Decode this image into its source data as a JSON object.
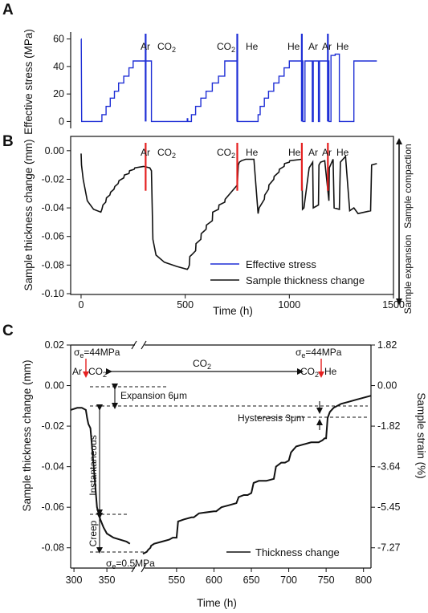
{
  "chart_data": [
    {
      "panel": "A",
      "type": "line",
      "ylabel": "Effective stress (MPa)",
      "xlim": [
        -50,
        1500
      ],
      "ylim": [
        -5,
        65
      ],
      "yticks": [
        0,
        20,
        40,
        60
      ],
      "series": [
        {
          "color": "#1f2fd6",
          "x": [
            0,
            1,
            1,
            3,
            3,
            100,
            100,
            120,
            120,
            140,
            140,
            160,
            160,
            180,
            180,
            205,
            205,
            230,
            230,
            250,
            250,
            330,
            330,
            338,
            338,
            510,
            510,
            512,
            512,
            515,
            515,
            530,
            530,
            550,
            550,
            575,
            575,
            600,
            600,
            630,
            630,
            660,
            660,
            690,
            690,
            750,
            750,
            760,
            760,
            850,
            850,
            860,
            860,
            880,
            880,
            900,
            900,
            925,
            925,
            950,
            950,
            975,
            975,
            1000,
            1000,
            1065,
            1065,
            1075,
            1075,
            1110,
            1110,
            1115,
            1115,
            1140,
            1140,
            1145,
            1145,
            1190,
            1190,
            1200,
            1200,
            1220,
            1220,
            1240,
            1240,
            1300,
            1300,
            1310,
            1310,
            1390,
            1390,
            1420
          ],
          "y": [
            60,
            60,
            60,
            0,
            0,
            0,
            5,
            5,
            11,
            11,
            17,
            17,
            22,
            22,
            28,
            28,
            33,
            33,
            39,
            39,
            44,
            44,
            44,
            44,
            0,
            0,
            2,
            2,
            0,
            0,
            0,
            0,
            5,
            5,
            11,
            11,
            17,
            17,
            22,
            22,
            28,
            28,
            33,
            33,
            44,
            44,
            0,
            0,
            0,
            0,
            5,
            5,
            11,
            11,
            17,
            17,
            22,
            22,
            28,
            28,
            33,
            33,
            39,
            39,
            44,
            44,
            0,
            0,
            44,
            44,
            0,
            0,
            44,
            44,
            0,
            0,
            44,
            44,
            0,
            0,
            48,
            48,
            49,
            49,
            0,
            0,
            0,
            0,
            44,
            44,
            44,
            44
          ]
        }
      ],
      "vlines": [
        {
          "x": 310,
          "label_left": "Ar",
          "label_right": "CO2",
          "color": "#1f2fd6"
        },
        {
          "x": 750,
          "label_left": "CO2",
          "label_right": "He",
          "color": "#1f2fd6"
        },
        {
          "x": 1060,
          "label_left": "He",
          "label_right": "Ar",
          "color": "#1f2fd6"
        },
        {
          "x": 1185,
          "label_left": "Ar",
          "label_right": "He",
          "color": "#1f2fd6"
        }
      ],
      "labels": {
        "letter": "A",
        "ar": "Ar",
        "co2": "CO",
        "sub2": "2",
        "he": "He"
      }
    },
    {
      "panel": "B",
      "type": "line",
      "xlabel": "Time (h)",
      "ylabel": "Sample thickness change (mm)",
      "xlim": [
        -50,
        1500
      ],
      "ylim": [
        -0.1,
        0.01
      ],
      "xticks": [
        0,
        500,
        1000,
        1500
      ],
      "yticks": [
        0.0,
        -0.02,
        -0.04,
        -0.06,
        -0.08,
        -0.1
      ],
      "series": [
        {
          "name": "Sample thickness change",
          "color": "#111111",
          "x": [
            0,
            2,
            10,
            30,
            60,
            95,
            100,
            105,
            118,
            122,
            138,
            142,
            158,
            162,
            178,
            182,
            205,
            208,
            230,
            233,
            255,
            258,
            300,
            330,
            338,
            345,
            360,
            400,
            460,
            510,
            515,
            520,
            522,
            530,
            550,
            552,
            575,
            577,
            600,
            602,
            630,
            632,
            660,
            662,
            690,
            692,
            750,
            755,
            760,
            770,
            790,
            830,
            850,
            855,
            880,
            882,
            900,
            902,
            925,
            927,
            950,
            952,
            975,
            977,
            1000,
            1002,
            1060,
            1063,
            1070,
            1095,
            1112,
            1115,
            1140,
            1142,
            1150,
            1170,
            1190,
            1192,
            1210,
            1215,
            1240,
            1245,
            1270,
            1290,
            1310,
            1330,
            1390,
            1395,
            1420
          ],
          "y": [
            -0.002,
            -0.01,
            -0.02,
            -0.035,
            -0.041,
            -0.043,
            -0.041,
            -0.038,
            -0.036,
            -0.033,
            -0.031,
            -0.029,
            -0.027,
            -0.025,
            -0.023,
            -0.021,
            -0.019,
            -0.017,
            -0.016,
            -0.014,
            -0.013,
            -0.012,
            -0.011,
            -0.012,
            -0.014,
            -0.062,
            -0.073,
            -0.078,
            -0.081,
            -0.083,
            -0.082,
            -0.08,
            -0.074,
            -0.073,
            -0.07,
            -0.065,
            -0.062,
            -0.058,
            -0.055,
            -0.052,
            -0.049,
            -0.043,
            -0.041,
            -0.038,
            -0.036,
            -0.034,
            -0.024,
            -0.01,
            -0.008,
            -0.007,
            -0.006,
            -0.006,
            -0.044,
            -0.04,
            -0.034,
            -0.031,
            -0.027,
            -0.024,
            -0.02,
            -0.018,
            -0.015,
            -0.013,
            -0.011,
            -0.009,
            -0.008,
            -0.007,
            -0.006,
            -0.041,
            -0.04,
            -0.012,
            -0.008,
            -0.04,
            -0.038,
            -0.01,
            -0.008,
            -0.007,
            -0.035,
            -0.012,
            -0.006,
            -0.04,
            -0.041,
            -0.008,
            -0.004,
            -0.042,
            -0.04,
            -0.044,
            -0.042,
            -0.01,
            -0.009
          ]
        },
        {
          "name": "Effective stress",
          "color": "#1f2fd6",
          "x": [],
          "y": []
        }
      ],
      "vlines": [
        {
          "x": 310,
          "label_left": "Ar",
          "label_right": "CO2",
          "color": "#e52020"
        },
        {
          "x": 750,
          "label_left": "CO2",
          "label_right": "He",
          "color": "#e52020"
        },
        {
          "x": 1060,
          "label_left": "He",
          "label_right": "Ar",
          "color": "#e52020"
        },
        {
          "x": 1185,
          "label_left": "Ar",
          "label_right": "He",
          "color": "#e52020"
        }
      ],
      "legend": {
        "position": "bottom-right",
        "entries": [
          "Effective stress",
          "Sample thickness change"
        ]
      },
      "right_annotations": {
        "top": "Sample compaction",
        "bottom": "Sample expansion"
      },
      "labels": {
        "letter": "B",
        "ar": "Ar",
        "co2": "CO",
        "sub2": "2",
        "he": "He",
        "compaction": "Sample\ncompaction",
        "expansion": "Sample\nexpansion"
      }
    },
    {
      "panel": "C",
      "type": "line",
      "xlabel": "Time (h)",
      "ylabel": "Sample thickness change (mm)",
      "ylabel_right": "Sample strain (%)",
      "ylim": [
        -0.09,
        0.02
      ],
      "yticks": [
        0.02,
        0.0,
        -0.02,
        -0.04,
        -0.06,
        -0.08
      ],
      "yticks_right": [
        "1.82",
        "0.00",
        "-1.82",
        "-3.64",
        "-5.45",
        "-7.27"
      ],
      "xticks_left": [
        300,
        350
      ],
      "xticks_right": [
        550,
        600,
        650,
        700,
        750,
        800
      ],
      "axis_break": {
        "left_range": [
          295,
          395
        ],
        "right_range": [
          505,
          810
        ]
      },
      "series": [
        {
          "name": "Thickness change",
          "color": "#111111",
          "segments": [
            {
              "x": [
                295,
                305,
                312,
                318,
                320,
                322,
                325,
                330,
                335,
                340,
                345,
                350,
                360,
                370,
                380,
                385
              ],
              "y": [
                -0.012,
                -0.011,
                -0.011,
                -0.012,
                -0.016,
                -0.019,
                -0.021,
                -0.04,
                -0.06,
                -0.066,
                -0.07,
                -0.073,
                -0.075,
                -0.076,
                -0.077,
                -0.078
              ]
            },
            {
              "x": [
                505,
                510,
                512,
                515,
                516,
                520,
                530,
                540,
                545,
                550,
                552,
                560,
                570,
                573,
                580,
                600,
                603,
                610,
                620,
                630,
                633,
                640,
                645,
                650,
                653,
                660,
                670,
                680,
                683,
                690,
                695,
                700,
                703,
                710,
                720,
                730,
                740,
                745,
                748,
                750,
                752,
                755,
                760,
                770,
                780,
                790,
                800,
                810
              ],
              "y": [
                -0.083,
                -0.082,
                -0.081,
                -0.08,
                -0.079,
                -0.078,
                -0.077,
                -0.076,
                -0.075,
                -0.075,
                -0.067,
                -0.066,
                -0.065,
                -0.065,
                -0.063,
                -0.062,
                -0.062,
                -0.06,
                -0.059,
                -0.058,
                -0.055,
                -0.054,
                -0.054,
                -0.053,
                -0.048,
                -0.047,
                -0.047,
                -0.046,
                -0.04,
                -0.038,
                -0.038,
                -0.037,
                -0.033,
                -0.03,
                -0.029,
                -0.028,
                -0.028,
                -0.027,
                -0.026,
                -0.026,
                -0.016,
                -0.013,
                -0.011,
                -0.009,
                -0.008,
                -0.007,
                -0.006,
                -0.005
              ]
            }
          ]
        }
      ],
      "legend": {
        "position": "bottom-right",
        "entries": [
          "Thickness change"
        ]
      },
      "annotations": [
        "Ar",
        "CO2",
        "CO2",
        "He",
        "σe=44MPa",
        "σe=44MPa",
        "σe=0.5MPa",
        "Expansion 6μm",
        "Hysteresis 3μm",
        "Instantaneous",
        "Creep"
      ],
      "labels": {
        "letter": "C",
        "ar": "Ar",
        "co2": "CO",
        "sub2": "2",
        "he": "He",
        "sigma": "σ",
        "sub_e": "e",
        "stress44": "=44MPa",
        "stress05": "=0.5MPa",
        "expansion": "Expansion 6μm",
        "hysteresis": "Hysteresis 3μm",
        "instantaneous": "Instantaneous",
        "creep": "Creep",
        "co2_span": "CO"
      }
    }
  ]
}
